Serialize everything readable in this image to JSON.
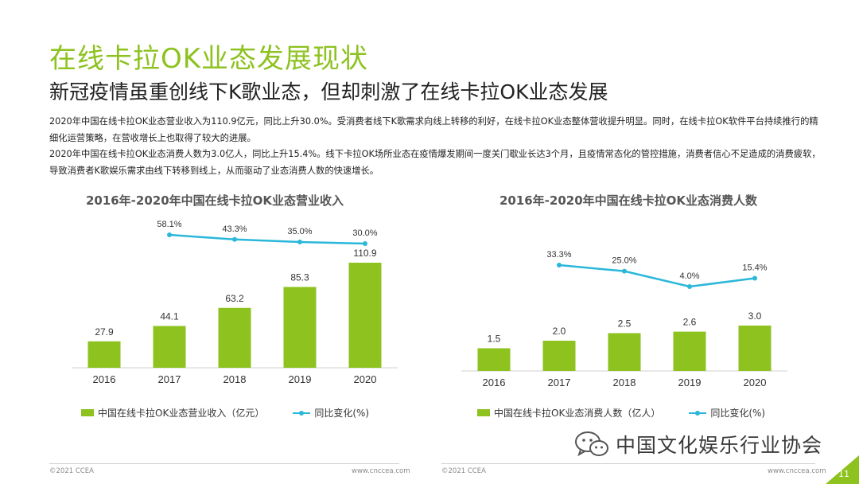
{
  "header": {
    "title": "在线卡拉OK业态发展现状",
    "subtitle": "新冠疫情虽重创线下K歌业态，但却刺激了在线卡拉OK业态发展"
  },
  "body": {
    "paragraph1": "2020年中国在线卡拉OK业态营业收入为110.9亿元，同比上升30.0%。受消费者线下K歌需求向线上转移的利好，在线卡拉OK业态整体营收提升明显。同时，在线卡拉OK软件平台持续推行的精细化运营策略，在营收增长上也取得了较大的进展。",
    "paragraph2": "2020年中国在线卡拉OK业态消费人数为3.0亿人，同比上升15.4%。线下卡拉OK场所业态在疫情爆发期间一度关门歇业长达3个月，且疫情常态化的管控措施，消费者信心不足造成的消费疲软，导致消费者K歌娱乐需求由线下转移到线上，从而驱动了业态消费人数的快速增长。"
  },
  "colors": {
    "bar": "#8DC21F",
    "line": "#2BB7DA",
    "title": "#8DC21F",
    "footer_corner": "#8DC21F"
  },
  "chart_data": [
    {
      "type": "bar",
      "title": "2016年-2020年中国在线卡拉OK业态营业收入",
      "categories": [
        "2016",
        "2017",
        "2018",
        "2019",
        "2020"
      ],
      "series": [
        {
          "name": "中国在线卡拉OK业态营业收入（亿元）",
          "type": "bar",
          "values": [
            27.9,
            44.1,
            63.2,
            85.3,
            110.9
          ],
          "labels": [
            "27.9",
            "44.1",
            "63.2",
            "85.3",
            "110.9"
          ]
        },
        {
          "name": "同比变化(%)",
          "type": "line",
          "values": [
            null,
            58.1,
            43.3,
            35.0,
            30.0
          ],
          "labels": [
            "",
            "58.1%",
            "43.3%",
            "35.0%",
            "30.0%"
          ]
        }
      ],
      "grid": false,
      "legend": "bottom"
    },
    {
      "type": "bar",
      "title": "2016年-2020年中国在线卡拉OK业态消费人数",
      "categories": [
        "2016",
        "2017",
        "2018",
        "2019",
        "2020"
      ],
      "series": [
        {
          "name": "中国在线卡拉OK业态消费人数（亿人）",
          "type": "bar",
          "values": [
            1.5,
            2.0,
            2.5,
            2.6,
            3.0
          ],
          "labels": [
            "1.5",
            "2.0",
            "2.5",
            "2.6",
            "3.0"
          ]
        },
        {
          "name": "同比变化(%)",
          "type": "line",
          "values": [
            null,
            33.3,
            25.0,
            4.0,
            15.4
          ],
          "labels": [
            "",
            "33.3%",
            "25.0%",
            "4.0%",
            "15.4%"
          ]
        }
      ],
      "grid": false,
      "legend": "bottom"
    }
  ],
  "watermark": {
    "text": "中国文化娱乐行业协会",
    "icon": "wechat-icon"
  },
  "footer": {
    "copyright_left": "©2021 CCEA",
    "site_left": "www.cnccea.com",
    "copyright_right": "©2021 CCEA",
    "site_right": "www.cnccea.com",
    "page_number": "11"
  }
}
